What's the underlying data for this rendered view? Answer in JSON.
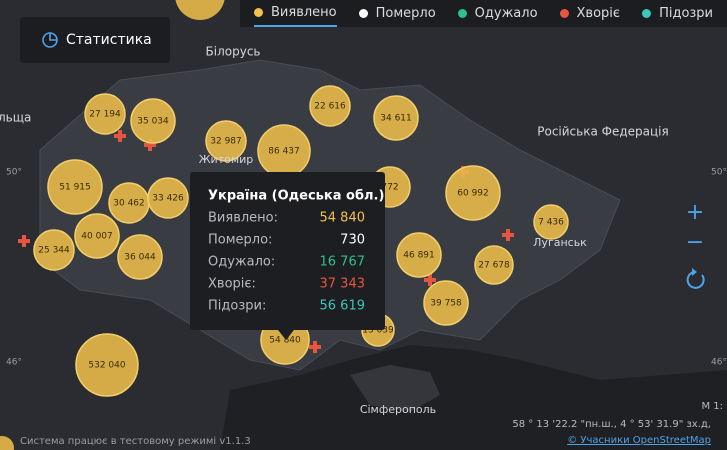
{
  "legend": [
    {
      "label": "Виявлено",
      "color": "#f2c14e"
    },
    {
      "label": "Померло",
      "color": "#ffffff"
    },
    {
      "label": "Одужало",
      "color": "#2fbf8a"
    },
    {
      "label": "Хворіє",
      "color": "#e8553e"
    },
    {
      "label": "Підозри",
      "color": "#3bc7b9"
    }
  ],
  "button": "Статистика",
  "map_labels": [
    "Білорусь",
    "Російська Федерація",
    "Житомир",
    "Луганськ",
    "Сімферополь",
    "льща"
  ],
  "graticule": [
    "50°",
    "46°",
    "50°",
    "46°"
  ],
  "bubbles": [
    "27 194",
    "35 034",
    "22 616",
    "34 611",
    "32 987",
    "86 437",
    "51 915",
    "30 462",
    "33 426",
    "772",
    "60 992",
    "7 436",
    "40 007",
    "25 344",
    "36 044",
    "46 891",
    "27 678",
    "39 758",
    "13 039",
    "54 840",
    "532 040"
  ],
  "tooltip": {
    "title": "Україна (Одеська обл.)",
    "rows": [
      [
        "Виявлено:",
        "54 840"
      ],
      [
        "Померло:",
        "730"
      ],
      [
        "Одужало:",
        "16 767"
      ],
      [
        "Хворіє:",
        "37 343"
      ],
      [
        "Підозри:",
        "56 619"
      ]
    ]
  },
  "footer": {
    "status": "Система працює в тестовому режимі v1.1.3",
    "coords": "58 ° 13 '22.2 \"пн.ш., 4 ° 53' 31.9\" зх.д,",
    "scale": "М 1:",
    "attribution": "© Учасники OpenStreetMap"
  }
}
